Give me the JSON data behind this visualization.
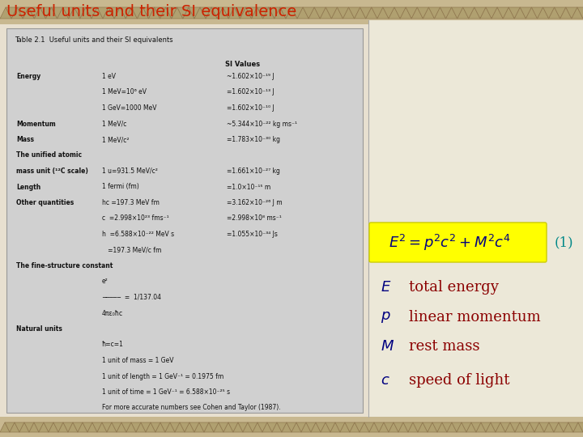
{
  "title": "Useful units and their SI equivalence",
  "title_color": "#cc2200",
  "title_fontsize": 14,
  "bg_color": "#e8e0d0",
  "left_panel_color": "#d0d0d0",
  "equation": "$E^2 = p^2c^2 + M^2c^4$",
  "equation_box_color": "#ffff00",
  "equation_label": "(1)",
  "equation_label_color": "#008888",
  "labels": [
    {
      "symbol": "$E$",
      "desc": "total energy"
    },
    {
      "symbol": "$p$",
      "desc": "linear momentum"
    },
    {
      "symbol": "$M$",
      "desc": "rest mass"
    },
    {
      "symbol": "$c$",
      "desc": "speed of light"
    }
  ],
  "label_symbol_color": "#000080",
  "label_desc_color": "#8b0000",
  "label_fontsize": 13,
  "triangle_color1": "#c8b890",
  "triangle_color2": "#b0a070",
  "bg_right_color": "#e8e4d4"
}
